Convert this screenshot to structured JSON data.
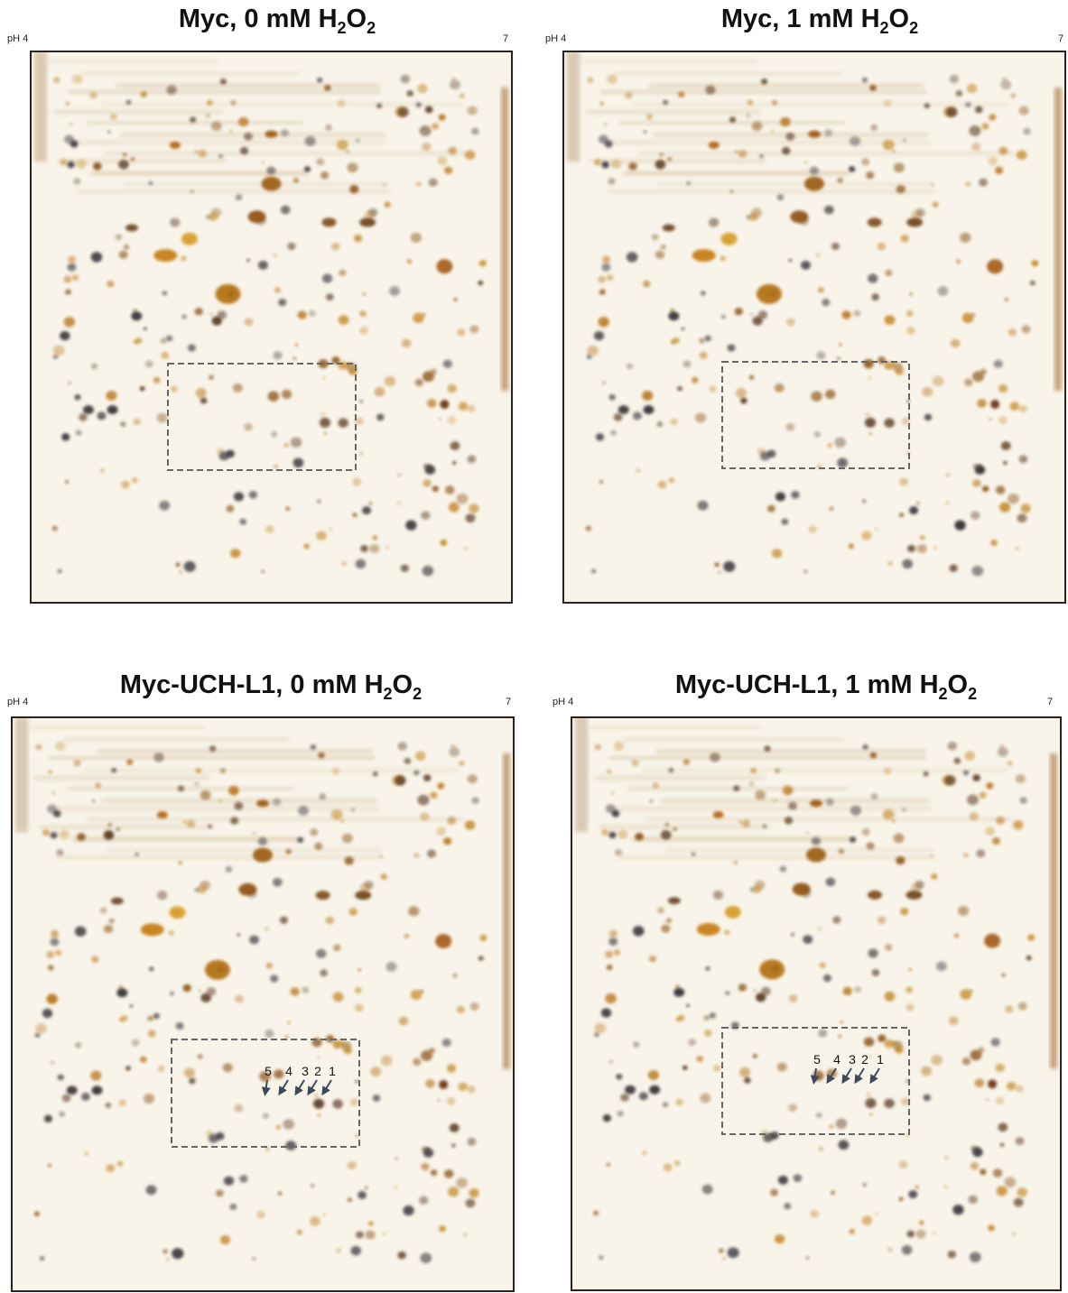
{
  "panels": [
    {
      "title": [
        "Myc, 0 mM H",
        "2",
        "O",
        "2"
      ],
      "ph_left": "pH 4",
      "ph_right": "7",
      "spot_labels": []
    },
    {
      "title": [
        "Myc, 1 mM H",
        "2",
        "O",
        "2"
      ],
      "ph_left": "pH 4",
      "ph_right": "7",
      "spot_labels": []
    },
    {
      "title": [
        "Myc-UCH-L1, 0 mM H",
        "2",
        "O",
        "2"
      ],
      "ph_left": "pH 4",
      "ph_right": "7",
      "spot_labels": [
        "5",
        "4",
        "3",
        "2",
        "1"
      ]
    },
    {
      "title": [
        "Myc-UCH-L1, 1 mM H",
        "2",
        "O",
        "2"
      ],
      "ph_left": "pH 4",
      "ph_right": "7",
      "spot_labels": [
        "5",
        "4",
        "3",
        "2",
        "1"
      ]
    }
  ]
}
